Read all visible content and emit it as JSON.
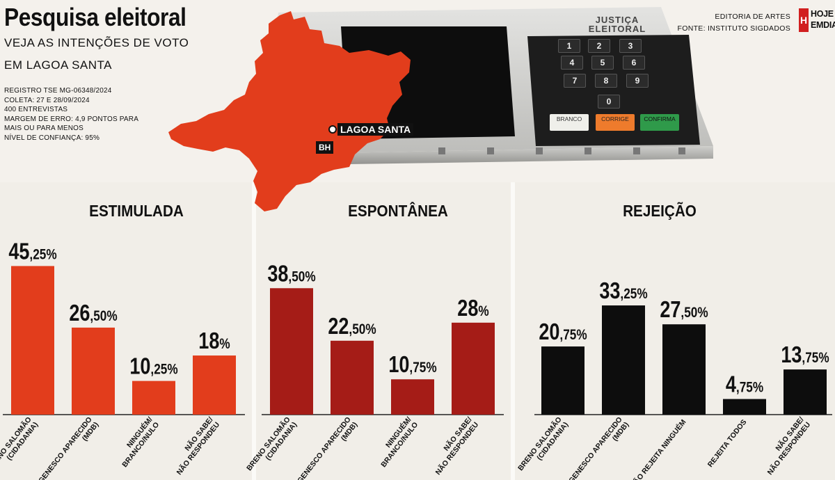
{
  "header": {
    "title": "Pesquisa eleitoral",
    "subtitle_line1": "VEJA AS INTENÇÕES DE VOTO",
    "subtitle_line2": "EM LAGOA SANTA",
    "meta": [
      "REGISTRO TSE MG-06348/2024",
      "COLETA: 27 E 28/09/2024",
      "400 ENTREVISTAS",
      "MARGEM DE ERRO: 4,9 PONTOS PARA",
      "MAIS OU PARA MENOS",
      "NÍVEL DE CONFIANÇA: 95%"
    ]
  },
  "credits": {
    "line1": "EDITORIA DE ARTES",
    "line2": "FONTE: INSTITUTO SIGDADOS",
    "logo_mark": "H",
    "logo_line1": "HOJE",
    "logo_line2": "EMDIA"
  },
  "map": {
    "city_label": "LAGOA SANTA",
    "capital_label": "BH",
    "state_color": "#e23d1c"
  },
  "urn": {
    "brand_line1": "JUSTIÇA",
    "brand_line2": "ELEITORAL",
    "keys": [
      "1",
      "2",
      "3",
      "4",
      "5",
      "6",
      "7",
      "8",
      "9",
      "0"
    ],
    "btn_branco": "BRANCO",
    "btn_corrige": "CORRIGE",
    "btn_confirma": "CONFIRMA"
  },
  "chart_data": [
    {
      "type": "bar",
      "title": "ESTIMULADA",
      "color": "#e23d1c",
      "categories": [
        [
          "BRENO SALOMÃO",
          "(CIDADANIA)"
        ],
        [
          "GENESCO APARECIDO",
          "(MDB)"
        ],
        [
          "NINGUÉM/",
          "BRANCO/NULO"
        ],
        [
          "NÃO SABE/",
          "NÃO RESPONDEU"
        ]
      ],
      "values": [
        45.25,
        26.5,
        10.25,
        18
      ],
      "labels": [
        [
          "45",
          ",25%"
        ],
        [
          "26",
          ",50%"
        ],
        [
          "10",
          ",25%"
        ],
        [
          "18",
          "%"
        ]
      ]
    },
    {
      "type": "bar",
      "title": "ESPONTÂNEA",
      "color": "#a51c17",
      "categories": [
        [
          "BRENO SALOMÃO",
          "(CIDADANIA)"
        ],
        [
          "GENESCO APARECIDO",
          "(MDB)"
        ],
        [
          "NINGUÉM/",
          "BRANCO/NULO"
        ],
        [
          "NÃO SABE/",
          "NÃO RESPONDEU"
        ]
      ],
      "values": [
        38.5,
        22.5,
        10.75,
        28
      ],
      "labels": [
        [
          "38",
          ",50%"
        ],
        [
          "22",
          ",50%"
        ],
        [
          "10",
          ",75%"
        ],
        [
          "28",
          "%"
        ]
      ]
    },
    {
      "type": "bar",
      "title": "REJEIÇÃO",
      "color": "#0d0d0d",
      "categories": [
        [
          "BRENO SALOMÃO",
          "(CIDADANIA)"
        ],
        [
          "GENESCO APARECIDO",
          "(MDB)"
        ],
        [
          "NÃO REJEITA NINGUÉM"
        ],
        [
          "REJEITA TODOS"
        ],
        [
          "NÃO SABE/",
          "NÃO RESPONDEU"
        ]
      ],
      "values": [
        20.75,
        33.25,
        27.5,
        4.75,
        13.75
      ],
      "labels": [
        [
          "20",
          ",75%"
        ],
        [
          "33",
          ",25%"
        ],
        [
          "27",
          ",50%"
        ],
        [
          "4",
          ",75%"
        ],
        [
          "13",
          ",75%"
        ]
      ]
    }
  ]
}
